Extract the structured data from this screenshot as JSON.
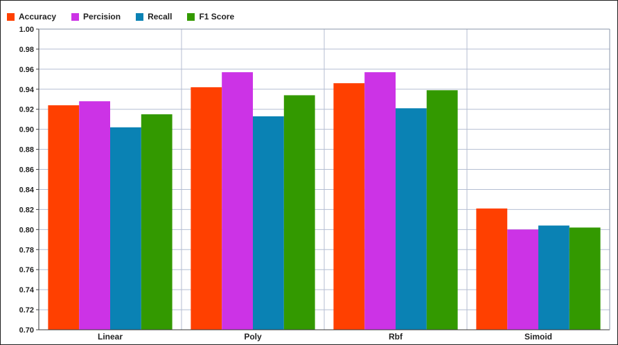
{
  "chart_data": {
    "type": "bar",
    "title": "",
    "xlabel": "",
    "ylabel": "",
    "categories": [
      "Linear",
      "Poly",
      "Rbf",
      "Simoid"
    ],
    "series": [
      {
        "name": "Accuracy",
        "color": "#ff4000",
        "values": [
          0.924,
          0.942,
          0.946,
          0.821
        ]
      },
      {
        "name": "Percision",
        "color": "#cc33e6",
        "values": [
          0.928,
          0.957,
          0.957,
          0.8
        ]
      },
      {
        "name": "Recall",
        "color": "#0a82b4",
        "values": [
          0.902,
          0.913,
          0.921,
          0.804
        ]
      },
      {
        "name": "F1 Score",
        "color": "#339900",
        "values": [
          0.915,
          0.934,
          0.939,
          0.802
        ]
      }
    ],
    "ylim": [
      0.7,
      1.0
    ],
    "yticks": [
      "0.70",
      "0.72",
      "0.74",
      "0.76",
      "0.78",
      "0.80",
      "0.82",
      "0.84",
      "0.86",
      "0.88",
      "0.90",
      "0.92",
      "0.94",
      "0.96",
      "0.98",
      "1.00"
    ],
    "grid": true,
    "legend_position": "top-left"
  }
}
